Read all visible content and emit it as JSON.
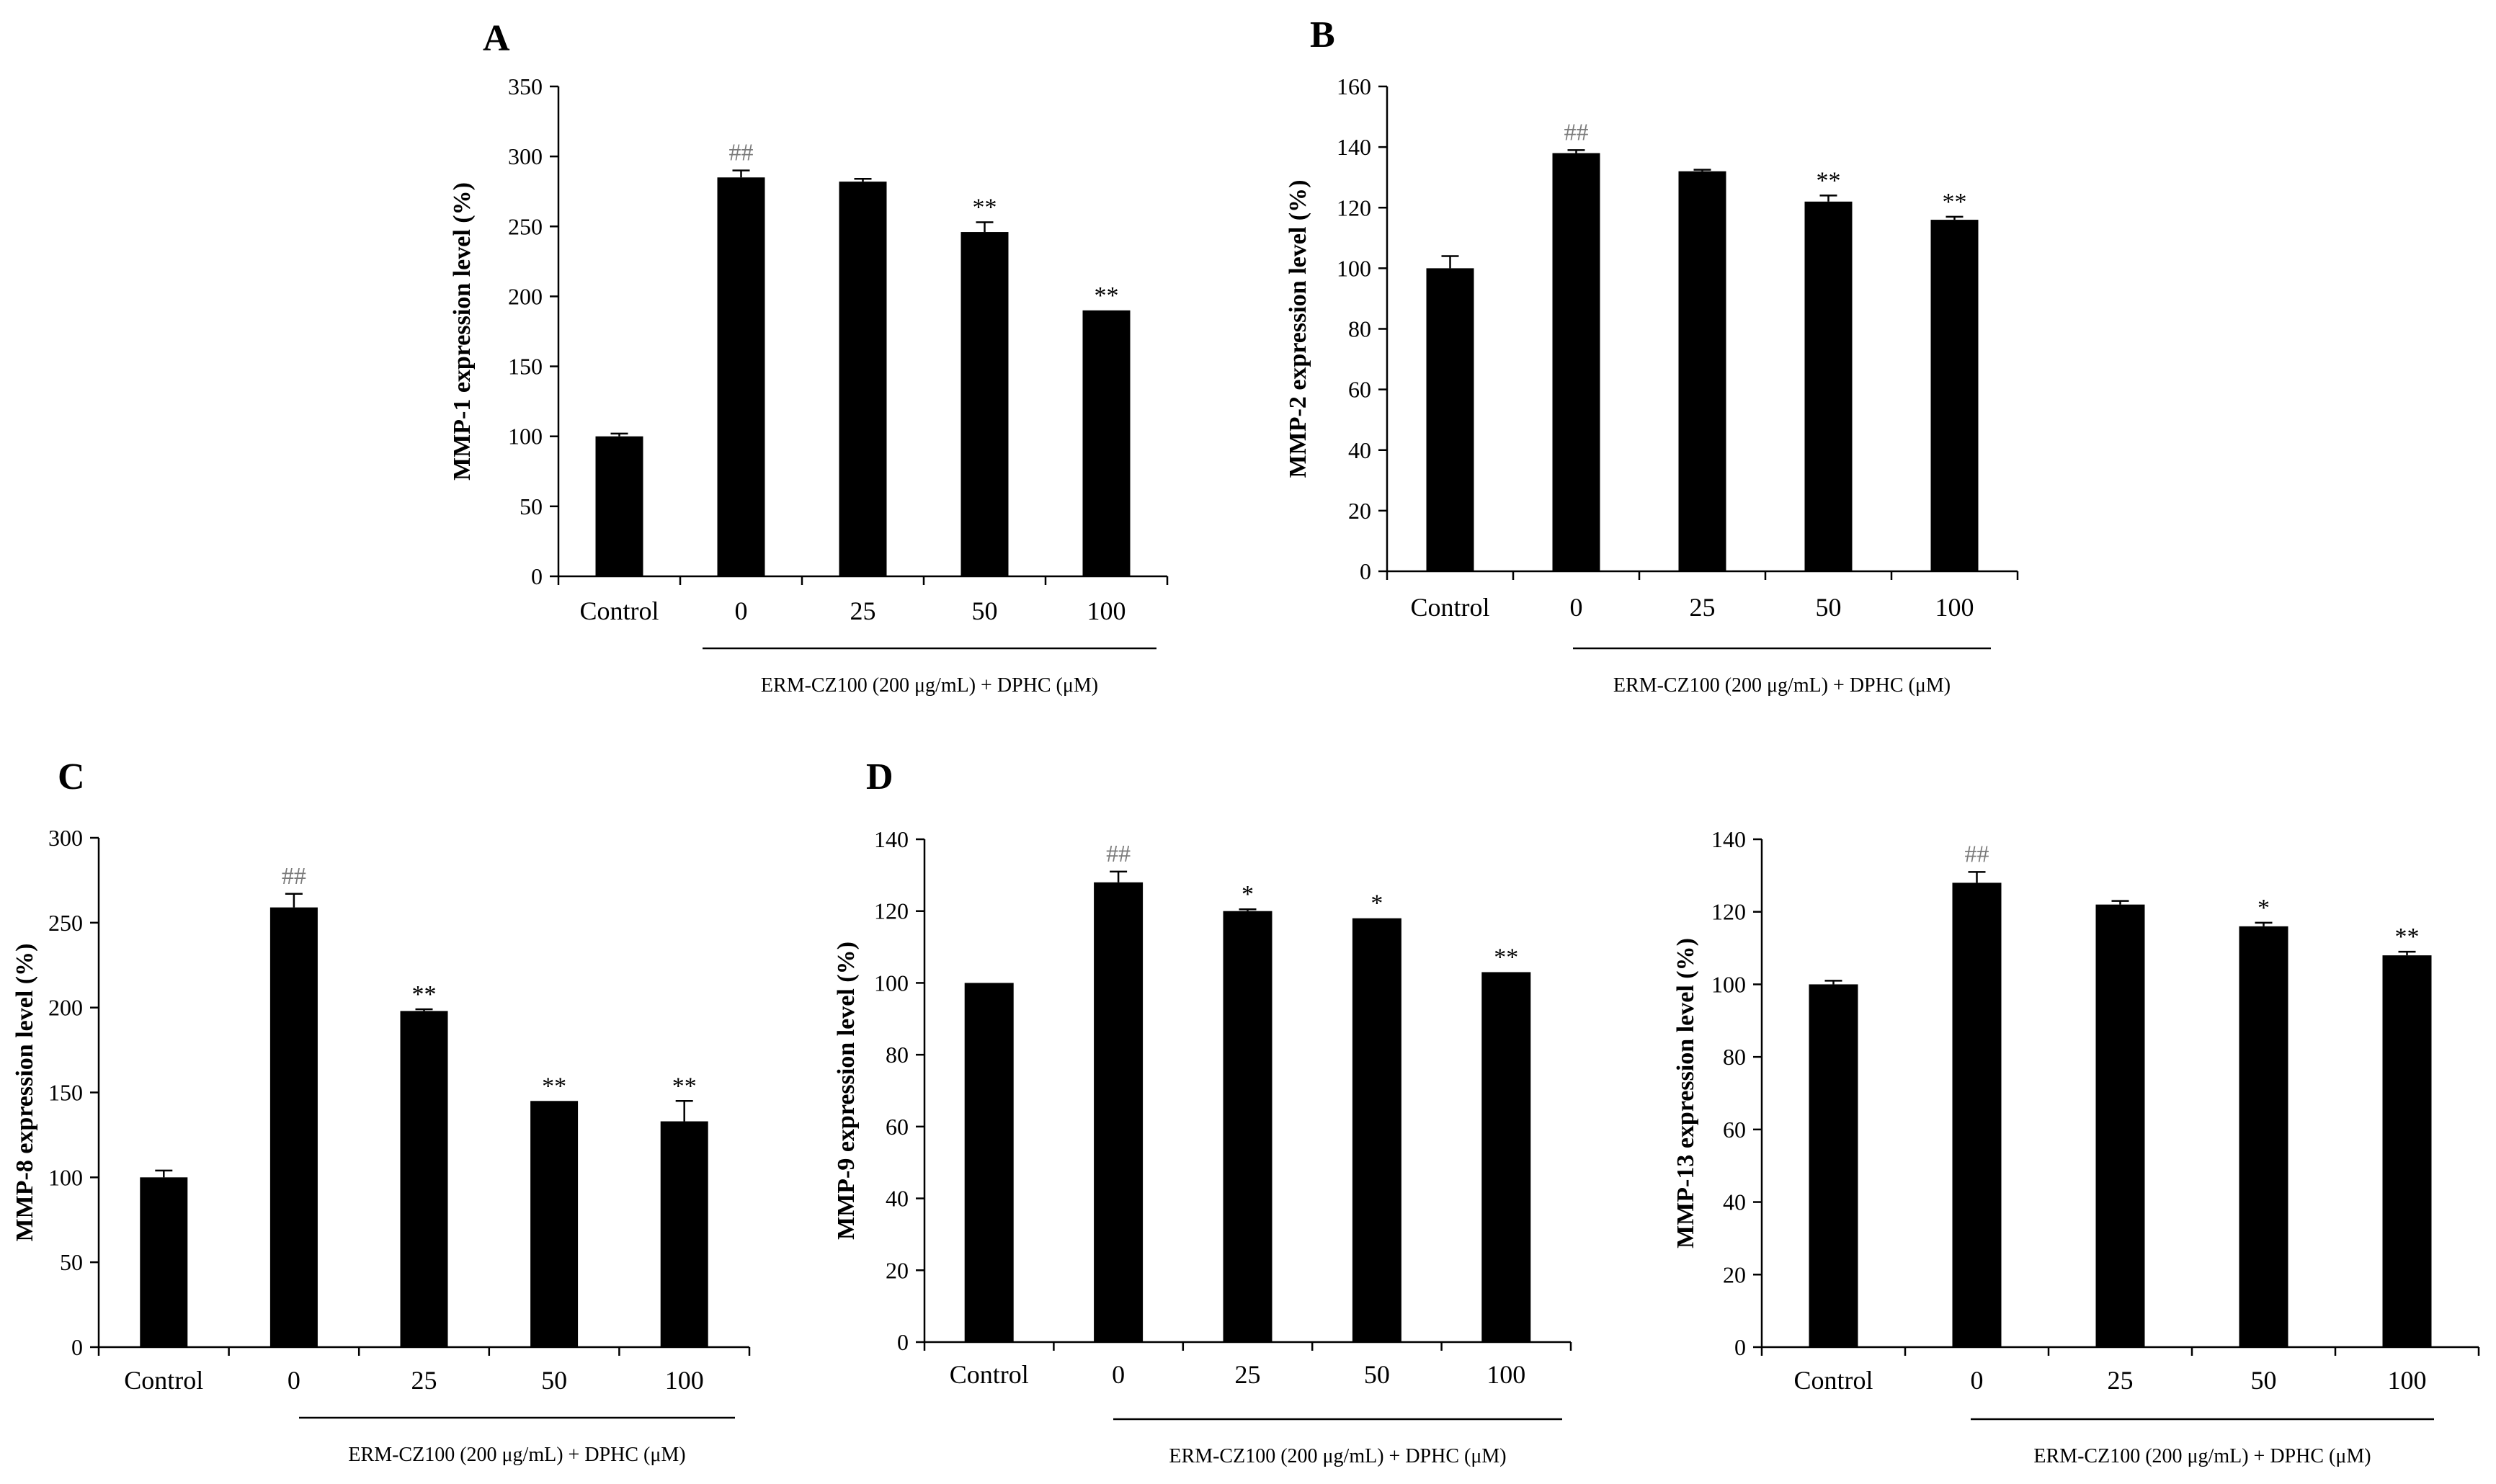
{
  "colors": {
    "bar": "#000000",
    "axis": "#000000",
    "hash_label": "#7a7a7a",
    "star_label": "#000000"
  },
  "chart_data": [
    {
      "type": "bar",
      "panel": "A",
      "ylabel": "MMP-1 expression level (%)",
      "xlabel": "",
      "group_label": "ERM-CZ100 (200  μg/mL) + DPHC (μM)",
      "ylim": [
        0,
        350
      ],
      "yticks": [
        0,
        50,
        100,
        150,
        200,
        250,
        300,
        350
      ],
      "ytick_labels": [
        "0",
        "50",
        "100",
        "150",
        "200",
        "250",
        "300",
        "350"
      ],
      "categories": [
        "Control",
        "0",
        "25",
        "50",
        "100"
      ],
      "values": [
        100,
        285,
        282,
        246,
        190
      ],
      "errors": [
        2,
        5,
        2,
        7,
        0
      ],
      "significance": [
        "",
        "##",
        "",
        "**",
        "**"
      ]
    },
    {
      "type": "bar",
      "panel": "B",
      "ylabel": "MMP-2 expression level (%)",
      "xlabel": "",
      "group_label": "ERM-CZ100 (200  μg/mL) + DPHC (μM)",
      "ylim": [
        0,
        160
      ],
      "yticks": [
        0,
        20,
        40,
        60,
        80,
        100,
        120,
        140,
        160
      ],
      "ytick_labels": [
        "0",
        "20",
        "40",
        "60",
        "80",
        "100",
        "120",
        "140",
        "160"
      ],
      "categories": [
        "Control",
        "0",
        "25",
        "50",
        "100"
      ],
      "values": [
        100,
        138,
        132,
        122,
        116
      ],
      "errors": [
        4,
        1,
        0.5,
        2,
        1
      ],
      "significance": [
        "",
        "##",
        "",
        "**",
        "**"
      ]
    },
    {
      "type": "bar",
      "panel": "C",
      "ylabel": "MMP-8 expression level (%)",
      "xlabel": "",
      "group_label": "ERM-CZ100 (200  μg/mL) + DPHC (μM)",
      "ylim": [
        0,
        300
      ],
      "yticks": [
        0,
        50,
        100,
        150,
        200,
        250,
        300
      ],
      "ytick_labels": [
        "0",
        "50",
        "100",
        "150",
        "200",
        "250",
        "300"
      ],
      "categories": [
        "Control",
        "0",
        "25",
        "50",
        "100"
      ],
      "values": [
        100,
        259,
        198,
        145,
        133
      ],
      "errors": [
        4,
        8,
        1,
        0,
        12
      ],
      "significance": [
        "",
        "##",
        "**",
        "**",
        "**"
      ]
    },
    {
      "type": "bar",
      "panel": "D",
      "ylabel": "MMP-9 expression level (%)",
      "xlabel": "",
      "group_label": "ERM-CZ100 (200  μg/mL) + DPHC (μM)",
      "ylim": [
        0,
        140
      ],
      "yticks": [
        0,
        20,
        40,
        60,
        80,
        100,
        120,
        140
      ],
      "ytick_labels": [
        "0",
        "20",
        "40",
        "60",
        "80",
        "100",
        "120",
        "140"
      ],
      "categories": [
        "Control",
        "0",
        "25",
        "50",
        "100"
      ],
      "values": [
        100,
        128,
        120,
        118,
        103
      ],
      "errors": [
        0,
        3,
        0.5,
        0,
        0
      ],
      "significance": [
        "",
        "##",
        "*",
        "*",
        "**"
      ]
    },
    {
      "type": "bar",
      "panel": "",
      "ylabel": "MMP-13 expression level (%)",
      "xlabel": "",
      "group_label": "ERM-CZ100 (200  μg/mL) + DPHC (μM)",
      "ylim": [
        0,
        140
      ],
      "yticks": [
        0,
        20,
        40,
        60,
        80,
        100,
        120,
        140
      ],
      "ytick_labels": [
        "0",
        "20",
        "40",
        "60",
        "80",
        "100",
        "120",
        "140"
      ],
      "categories": [
        "Control",
        "0",
        "25",
        "50",
        "100"
      ],
      "values": [
        100,
        128,
        122,
        116,
        108
      ],
      "errors": [
        1,
        3,
        1,
        1,
        1
      ],
      "significance": [
        "",
        "##",
        "",
        "*",
        "**"
      ]
    }
  ]
}
